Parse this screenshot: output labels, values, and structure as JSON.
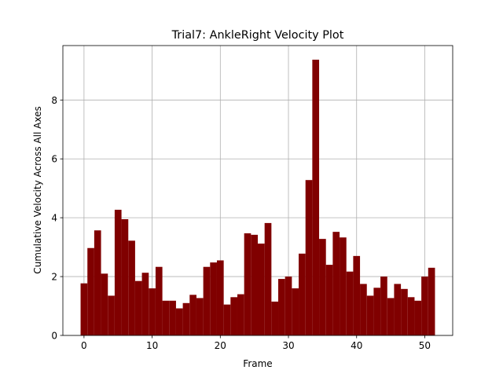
{
  "chart_data": {
    "type": "bar",
    "title": "Trial7: AnkleRight Velocity Plot",
    "xlabel": "Frame",
    "ylabel": "Cumulative Velocity Across All Axes",
    "xlim": [
      -3.1,
      54.1
    ],
    "ylim": [
      0,
      9.85
    ],
    "xticks": [
      0,
      10,
      20,
      30,
      40,
      50
    ],
    "yticks": [
      0,
      2,
      4,
      6,
      8
    ],
    "grid": true,
    "bar_color": "#800000",
    "x": [
      0,
      1,
      2,
      3,
      4,
      5,
      6,
      7,
      8,
      9,
      10,
      11,
      12,
      13,
      14,
      15,
      16,
      17,
      18,
      19,
      20,
      21,
      22,
      23,
      24,
      25,
      26,
      27,
      28,
      29,
      30,
      31,
      32,
      33,
      34,
      35,
      36,
      37,
      38,
      39,
      40,
      41,
      42,
      43,
      44,
      45,
      46,
      47,
      48,
      49,
      50,
      51
    ],
    "values": [
      1.77,
      2.97,
      3.57,
      2.1,
      1.35,
      4.27,
      3.95,
      3.22,
      1.85,
      2.13,
      1.6,
      2.33,
      1.18,
      1.18,
      0.92,
      1.1,
      1.38,
      1.27,
      2.33,
      2.48,
      2.55,
      1.05,
      1.3,
      1.4,
      3.47,
      3.42,
      3.12,
      3.82,
      1.15,
      1.92,
      2.0,
      1.6,
      2.78,
      5.28,
      9.37,
      3.28,
      2.4,
      3.52,
      3.33,
      2.17,
      2.7,
      1.75,
      1.35,
      1.62,
      2.0,
      1.27,
      1.75,
      1.58,
      1.3,
      1.18,
      2.0,
      2.3
    ]
  }
}
